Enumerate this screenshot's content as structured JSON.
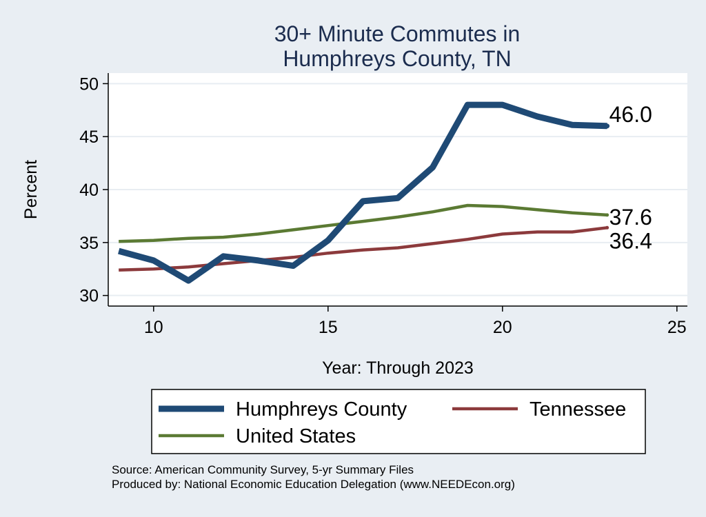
{
  "chart_data": {
    "type": "line",
    "title": [
      "30+ Minute Commutes in",
      "Humphreys County, TN"
    ],
    "xlabel": "Year: Through 2023",
    "ylabel": "Percent",
    "xlim": [
      8.7,
      25.3
    ],
    "ylim": [
      29.0,
      51.0
    ],
    "xticks": [
      10,
      15,
      20,
      25
    ],
    "yticks": [
      30,
      35,
      40,
      45,
      50
    ],
    "grid": true,
    "legend_position": "bottom",
    "series": [
      {
        "name": "Humphreys County",
        "color": "#1f4a75",
        "x": [
          9,
          10,
          11,
          12,
          13,
          14,
          15,
          16,
          17,
          18,
          19,
          20,
          21,
          22,
          23
        ],
        "y": [
          34.2,
          33.3,
          31.4,
          33.7,
          33.3,
          32.8,
          35.2,
          38.9,
          39.2,
          42.1,
          48.0,
          48.0,
          46.9,
          46.1,
          46.0
        ],
        "end_label": "46.0",
        "line_width": 9
      },
      {
        "name": "Tennessee",
        "color": "#8c3a3c",
        "x": [
          9,
          10,
          11,
          12,
          13,
          14,
          15,
          16,
          17,
          18,
          19,
          20,
          21,
          22,
          23
        ],
        "y": [
          32.4,
          32.5,
          32.7,
          33.0,
          33.3,
          33.6,
          34.0,
          34.3,
          34.5,
          34.9,
          35.3,
          35.8,
          36.0,
          36.0,
          36.4
        ],
        "end_label": "36.4",
        "line_width": 4.5
      },
      {
        "name": "United States",
        "color": "#5b7a33",
        "x": [
          9,
          10,
          11,
          12,
          13,
          14,
          15,
          16,
          17,
          18,
          19,
          20,
          21,
          22,
          23
        ],
        "y": [
          35.1,
          35.2,
          35.4,
          35.5,
          35.8,
          36.2,
          36.6,
          37.0,
          37.4,
          37.9,
          38.5,
          38.4,
          38.1,
          37.8,
          37.6
        ],
        "end_label": "37.6",
        "line_width": 4.5
      }
    ]
  },
  "footer": {
    "source": "Source: American Community Survey, 5-yr Summary Files",
    "produced_by": "Produced by: National Economic Education Delegation (www.NEEDEcon.org)"
  }
}
